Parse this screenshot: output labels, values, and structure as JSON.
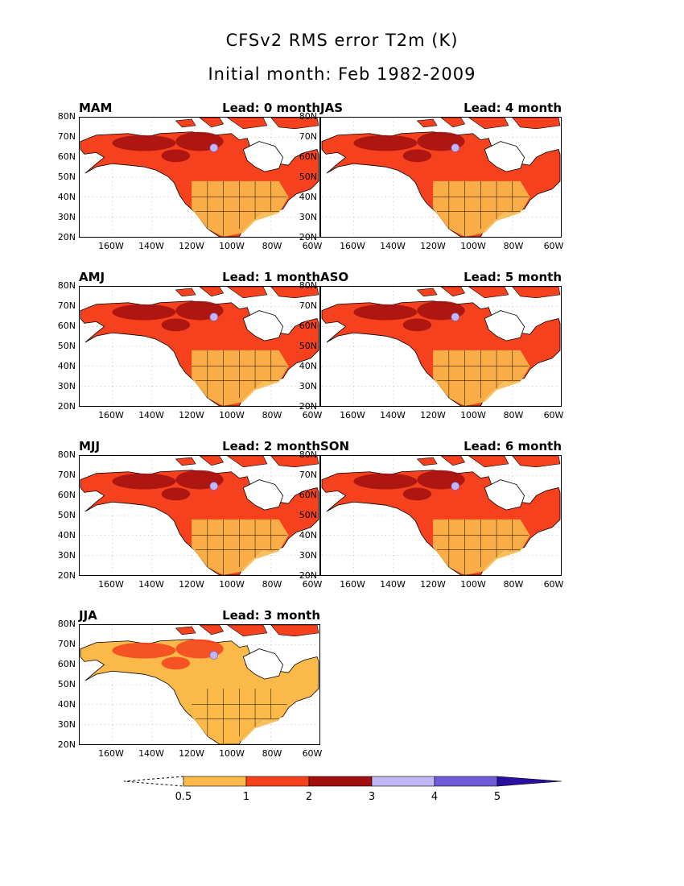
{
  "title": "CFSv2 RMS error T2m (K)",
  "subtitle": "Initial month: Feb 1982-2009",
  "axes": {
    "lat_labels": [
      "80N",
      "70N",
      "60N",
      "50N",
      "40N",
      "30N",
      "20N"
    ],
    "lon_labels": [
      "160W",
      "140W",
      "120W",
      "100W",
      "80W",
      "60W"
    ]
  },
  "panels": [
    {
      "season": "MAM",
      "lead": "Lead: 0 month"
    },
    {
      "season": "AMJ",
      "lead": "Lead: 1 month"
    },
    {
      "season": "MJJ",
      "lead": "Lead: 2 month"
    },
    {
      "season": "JJA",
      "lead": "Lead: 3 month"
    },
    {
      "season": "JAS",
      "lead": "Lead: 4 month"
    },
    {
      "season": "ASO",
      "lead": "Lead: 5 month"
    },
    {
      "season": "SON",
      "lead": "Lead: 6 month"
    }
  ],
  "colorbar": {
    "labels": [
      "0.5",
      "1",
      "2",
      "3",
      "4",
      "5"
    ],
    "colors": [
      "#fbb94a",
      "#f5411e",
      "#a10f0f",
      "#c3b6f5",
      "#6f5ad8",
      "#2b0fa0"
    ]
  },
  "colors": {
    "land_low": "#fbb94a",
    "land_mid": "#f5411e",
    "land_high": "#a10f0f",
    "lavender": "#c3b6f5",
    "ocean": "#ffffff"
  }
}
